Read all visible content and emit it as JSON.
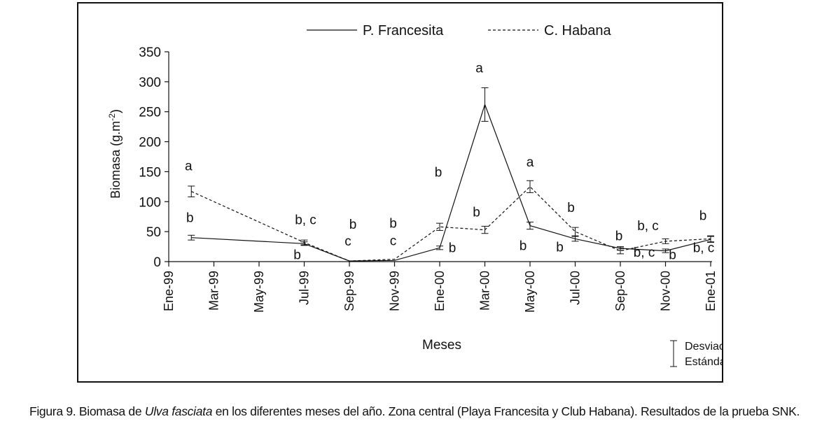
{
  "chart_data": {
    "type": "line",
    "ylabel": "Biomasa (g.m-2)",
    "ylabel_main": "Biomasa (g.m",
    "ylabel_sup": "-2",
    "ylabel_close": ")",
    "xlabel": "Meses",
    "ylim": [
      0,
      350
    ],
    "yticks": [
      "0",
      "50",
      "100",
      "150",
      "200",
      "250",
      "300",
      "350"
    ],
    "categories": [
      "Ene-99",
      "Mar-99",
      "May-99",
      "Jul-99",
      "Sep-99",
      "Nov-99",
      "Ene-00",
      "Mar-00",
      "May-00",
      "Jul-00",
      "Sep-00",
      "Nov-00",
      "Ene-01"
    ],
    "grid": false,
    "legend_position": "top",
    "series": [
      {
        "name": "P. Francesita",
        "style": "solid",
        "x": [
          0.5,
          3,
          4,
          5,
          6,
          7,
          8,
          9,
          10,
          11,
          12
        ],
        "values": [
          40,
          30,
          1,
          2,
          23,
          262,
          60,
          38,
          22,
          18,
          37
        ],
        "error": [
          4,
          3,
          0,
          0,
          3,
          28,
          6,
          4,
          3,
          3,
          5
        ],
        "labels": [
          "b",
          "b",
          "c",
          "c",
          "b",
          "a",
          "b",
          "b",
          "b, c",
          "b",
          "b, c"
        ]
      },
      {
        "name": "C. Habana",
        "style": "dashed",
        "x": [
          0.5,
          3,
          4,
          5,
          6,
          7,
          8,
          9,
          10,
          11,
          12
        ],
        "values": [
          117,
          32,
          1,
          4,
          58,
          53,
          125,
          50,
          18,
          34,
          38
        ],
        "error": [
          9,
          4,
          0,
          0,
          6,
          6,
          10,
          7,
          5,
          4,
          5
        ],
        "labels": [
          "a",
          "b, c",
          "b",
          "b",
          "b",
          "b",
          "a",
          "b",
          "b",
          "b, c",
          "b"
        ]
      }
    ],
    "annotation_key": [
      "Desviación",
      "Estándar"
    ]
  },
  "caption": {
    "prefix": "Figura 9. Biomasa de ",
    "species": "Ulva fasciata",
    "suffix": " en los diferentes meses del año.  Zona central (Playa Francesita y Club Habana). Resultados de la prueba SNK."
  }
}
